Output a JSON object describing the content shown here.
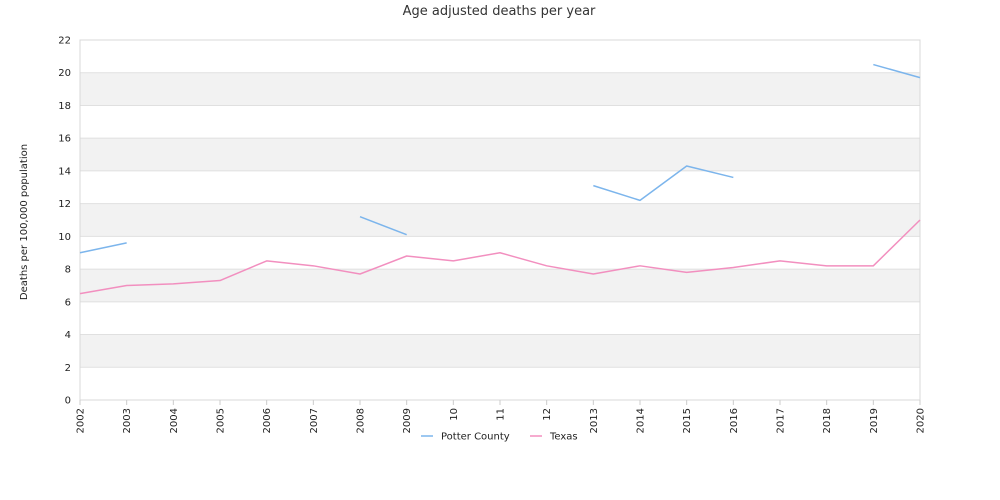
{
  "chart_data": {
    "type": "line",
    "title": "Age adjusted deaths per year",
    "xlabel": "",
    "ylabel": "Deaths per 100,000 population",
    "ylim": [
      0,
      22
    ],
    "yticks": [
      "0",
      "2",
      "4",
      "6",
      "8",
      "10",
      "12",
      "14",
      "16",
      "18",
      "20",
      "22"
    ],
    "categories": [
      "2002",
      "2003",
      "2004",
      "2005",
      "2006",
      "2007",
      "2008",
      "2009",
      "10",
      "11",
      "12",
      "2013",
      "2014",
      "2015",
      "2016",
      "2017",
      "2018",
      "2019",
      "2020"
    ],
    "grid": true,
    "legend_position": "bottom-center",
    "series": [
      {
        "name": "Potter County",
        "color": "#7cb5ec",
        "values": [
          9.0,
          9.6,
          null,
          null,
          null,
          null,
          11.2,
          10.1,
          null,
          null,
          null,
          13.1,
          12.2,
          14.3,
          13.6,
          null,
          null,
          20.5,
          19.7
        ]
      },
      {
        "name": "Texas",
        "color": "#f28fbf",
        "values": [
          6.5,
          7.0,
          7.1,
          7.3,
          8.5,
          8.2,
          7.7,
          8.8,
          8.5,
          9.0,
          8.2,
          7.7,
          8.2,
          7.8,
          8.1,
          8.5,
          8.2,
          8.2,
          11.0
        ]
      }
    ]
  }
}
